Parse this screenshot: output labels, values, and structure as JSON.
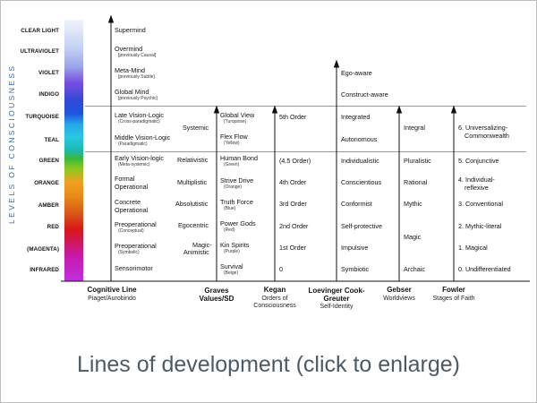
{
  "caption": "Lines of development (click to enlarge)",
  "vertical_label": "LEVELS OF CONSCIOUSNESS",
  "levels": [
    {
      "name": "CLEAR LIGHT",
      "color": "#e8eef8"
    },
    {
      "name": "ULTRAVIOLET",
      "color": "#b4c2f2"
    },
    {
      "name": "VIOLET",
      "color": "#7a4ee0"
    },
    {
      "name": "INDIGO",
      "color": "#2848d8"
    },
    {
      "name": "TURQUOISE",
      "color": "#26b8e8"
    },
    {
      "name": "TEAL",
      "color": "#1cb8b0"
    },
    {
      "name": "GREEN",
      "color": "#38b830"
    },
    {
      "name": "ORANGE",
      "color": "#e8a020"
    },
    {
      "name": "AMBER",
      "color": "#d87018"
    },
    {
      "name": "RED",
      "color": "#d81818"
    },
    {
      "name": "(MAGENTA)",
      "color": "#c818a8"
    },
    {
      "name": "INFRARED",
      "color": "#b83ad8"
    }
  ],
  "columns": [
    {
      "title": "Cognitive Line",
      "subtitle": "Piaget/Aurobindo"
    },
    {
      "title": "Graves Values/SD",
      "subtitle": ""
    },
    {
      "title": "Kegan",
      "subtitle": "Orders of Consciousness"
    },
    {
      "title": "Loevinger Cook-Greuter",
      "subtitle": "Self-Identity"
    },
    {
      "title": "Gebser",
      "subtitle": "Worldviews"
    },
    {
      "title": "Fowler",
      "subtitle": "Stages of Faith"
    }
  ],
  "cognitive": [
    {
      "label": "Supermind",
      "note": ""
    },
    {
      "label": "Overmind",
      "note": "[previously Causal]"
    },
    {
      "label": "Meta-Mind",
      "note": "[previously Subtle]"
    },
    {
      "label": "Global Mind",
      "note": "[previously Psychic]"
    },
    {
      "label": "Late Vision-Logic",
      "note": "(Cross-paradigmatic)"
    },
    {
      "label": "Middle Vision-Logic",
      "note": "(Paradigmatic)"
    },
    {
      "label": "Early Vision-logic",
      "note": "(Meta-systemic)"
    },
    {
      "label": "Formal Operational",
      "note": ""
    },
    {
      "label": "Concrete Operational",
      "note": ""
    },
    {
      "label": "Preoperational",
      "note": "(Conceptual)"
    },
    {
      "label": "Preoperational",
      "note": "(Symbolic)"
    },
    {
      "label": "Sensorimotor",
      "note": ""
    }
  ],
  "cognitive_split": {
    "formal_1": "Formal",
    "formal_2": "Operational",
    "concrete_1": "Concrete",
    "concrete_2": "Operational"
  },
  "graves": {
    "systemic": "Systemic",
    "relativistic": "Relativistic",
    "multiplistic": "Multiplistic",
    "absolutistic": "Absolutistic",
    "egocentric": "Egocentric",
    "magic_1": "Magic-",
    "magic_2": "Animistic",
    "items": [
      {
        "label": "Global View",
        "note": "(Turquoise)"
      },
      {
        "label": "Flex Flow",
        "note": "(Yellow)"
      },
      {
        "label": "Human Bond",
        "note": "(Green)"
      },
      {
        "label": "Strive Drive",
        "note": "(Orange)"
      },
      {
        "label": "Truth Force",
        "note": "(Blue)"
      },
      {
        "label": "Power Gods",
        "note": "(Red)"
      },
      {
        "label": "Kin Spirits",
        "note": "(Purple)"
      },
      {
        "label": "Survival",
        "note": "(Beige)"
      }
    ]
  },
  "kegan": [
    "5th Order",
    "(4.5 Order)",
    "4th Order",
    "3rd Order",
    "2nd Order",
    "1st Order",
    "0"
  ],
  "loevinger": [
    "Ego-aware",
    "Construct-aware",
    "Integrated",
    "Autonomous",
    "Individualistic",
    "Conscientious",
    "Conformist",
    "Self-protective",
    "Impulsive",
    "Symbiotic"
  ],
  "gebser": [
    "Integral",
    "Pluralistic",
    "Rational",
    "Mythic",
    "Magic",
    "Archaic"
  ],
  "fowler": [
    "6. Universalizing-",
    "Commonwealth",
    "5. Conjunctive",
    "4. Individual-",
    "reflexive",
    "3. Conventional",
    "2. Mythic-literal",
    "1. Magical",
    "0. Undifferentiated"
  ]
}
